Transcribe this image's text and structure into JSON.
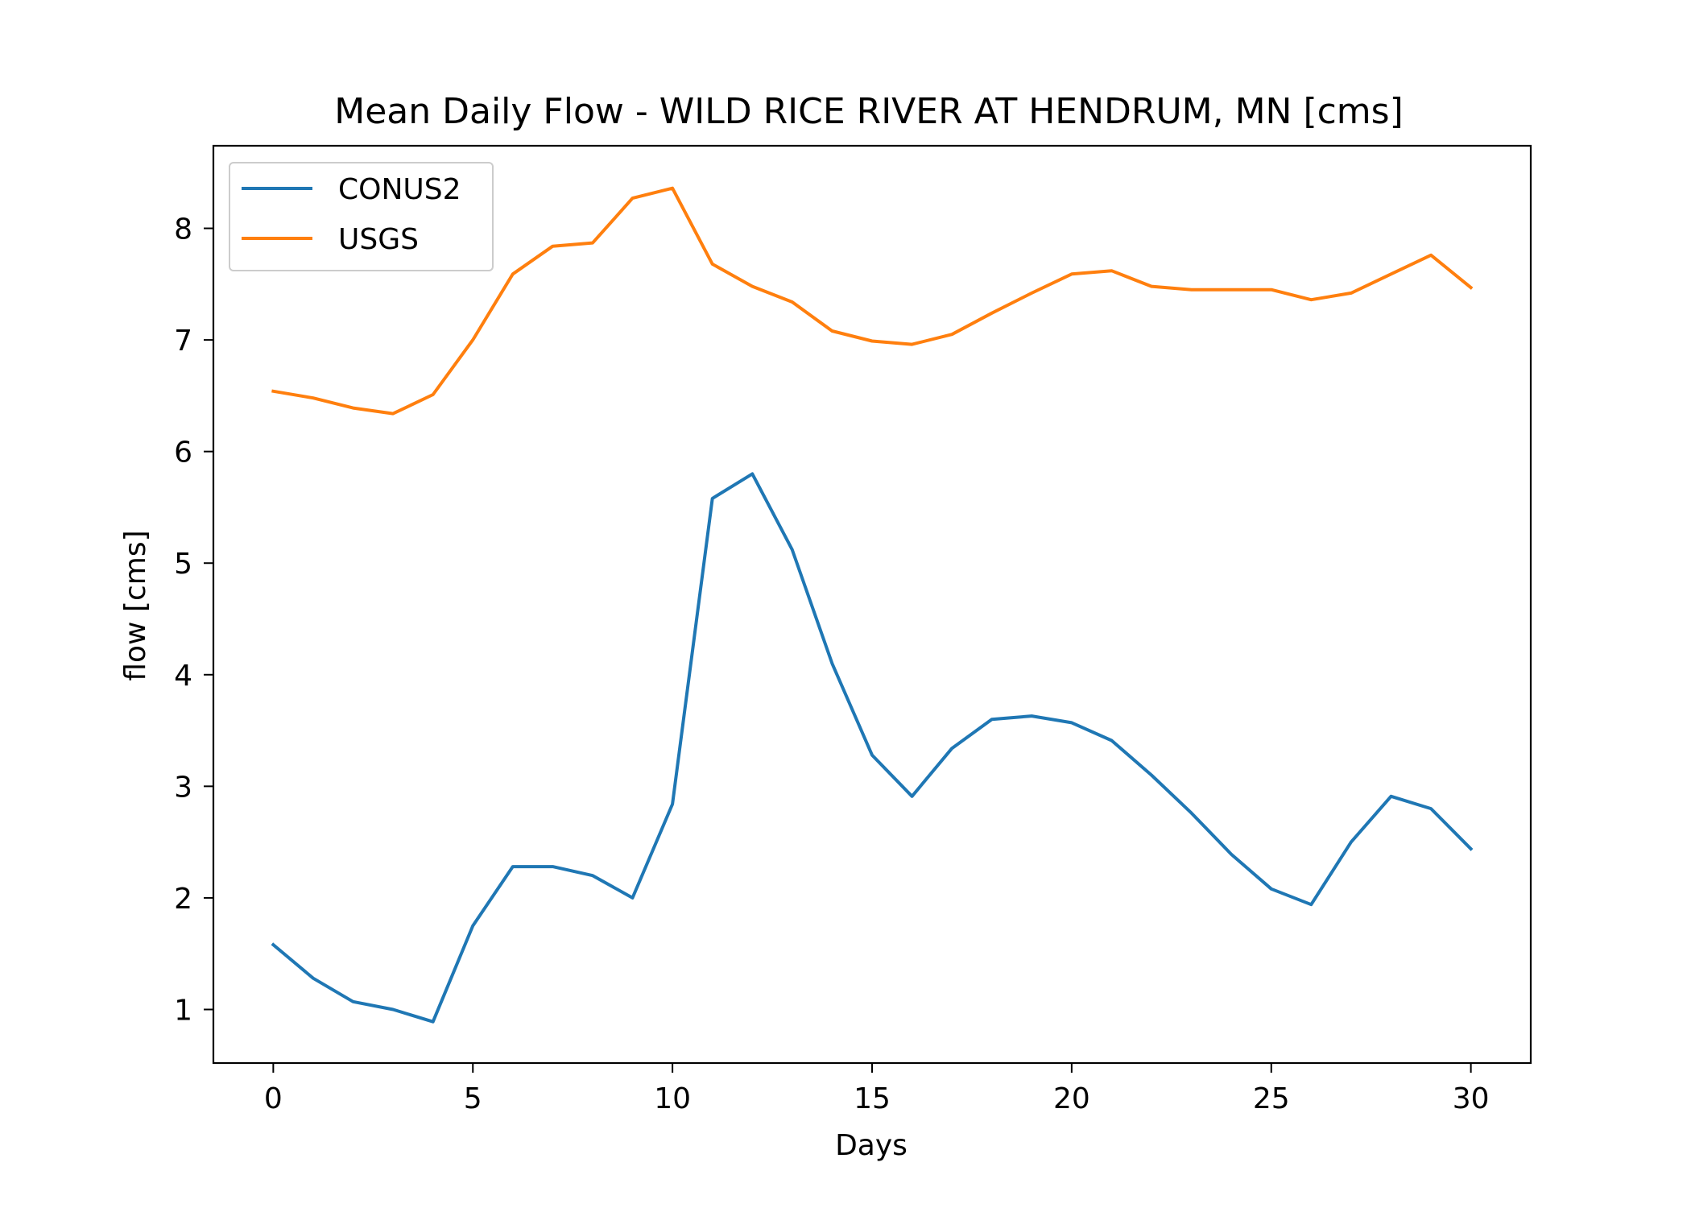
{
  "chart_data": {
    "type": "line",
    "title": "Mean Daily Flow - WILD RICE RIVER AT HENDRUM, MN [cms]",
    "xlabel": "Days",
    "ylabel": "flow [cms]",
    "xlim": [
      -1.5,
      31.5
    ],
    "ylim": [
      0.52,
      8.74
    ],
    "xticks": [
      0,
      5,
      10,
      15,
      20,
      25,
      30
    ],
    "yticks": [
      1,
      2,
      3,
      4,
      5,
      6,
      7,
      8
    ],
    "grid": false,
    "legend_position": "upper left",
    "x": [
      0,
      1,
      2,
      3,
      4,
      5,
      6,
      7,
      8,
      9,
      10,
      11,
      12,
      13,
      14,
      15,
      16,
      17,
      18,
      19,
      20,
      21,
      22,
      23,
      24,
      25,
      26,
      27,
      28,
      29,
      30
    ],
    "series": [
      {
        "name": "CONUS2",
        "color": "#1f77b4",
        "values": [
          1.58,
          1.28,
          1.07,
          1.0,
          0.89,
          1.75,
          2.28,
          2.28,
          2.2,
          2.0,
          2.84,
          5.58,
          5.8,
          5.12,
          4.1,
          3.28,
          2.91,
          3.34,
          3.6,
          3.63,
          3.57,
          3.41,
          3.1,
          2.76,
          2.39,
          2.08,
          1.94,
          2.5,
          2.91,
          2.8,
          2.44
        ]
      },
      {
        "name": "USGS",
        "color": "#ff7f0e",
        "values": [
          6.54,
          6.48,
          6.39,
          6.34,
          6.51,
          7.0,
          7.59,
          7.84,
          7.87,
          8.27,
          8.36,
          7.68,
          7.48,
          7.34,
          7.08,
          6.99,
          6.96,
          7.05,
          7.24,
          7.42,
          7.59,
          7.62,
          7.48,
          7.45,
          7.45,
          7.45,
          7.36,
          7.42,
          7.59,
          7.76,
          7.47
        ]
      }
    ]
  }
}
